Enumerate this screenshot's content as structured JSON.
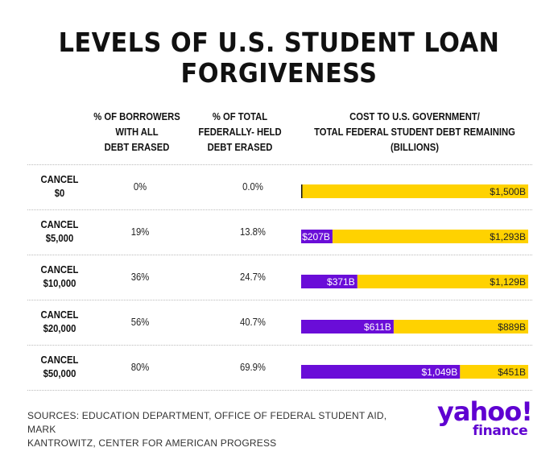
{
  "title_line1": "LEVELS OF U.S. STUDENT LOAN",
  "title_line2": "FORGIVENESS",
  "headers": {
    "borrowers": [
      "% OF BORROWERS",
      "WITH ALL",
      "DEBT ERASED"
    ],
    "debt": [
      "% OF TOTAL",
      "FEDERALLY- HELD",
      "DEBT ERASED"
    ],
    "cost": [
      "COST TO U.S. GOVERNMENT/",
      "TOTAL FEDERAL STUDENT DEBT REMAINING",
      "(BILLIONS)"
    ]
  },
  "sources_line1": "SOURCES: EDUCATION DEPARTMENT, OFFICE OF FEDERAL STUDENT AID, MARK",
  "sources_line2": "KANTROWITZ, CENTER FOR AMERICAN PROGRESS",
  "logo": {
    "yahoo": "yahoo!",
    "finance": "finance"
  },
  "colors": {
    "cost": "#6a0dd8",
    "remaining": "#ffd200"
  },
  "chart_data": {
    "type": "table",
    "rows": [
      {
        "label_line1": "CANCEL",
        "label_line2": "$0",
        "borrowers_pct": "0%",
        "debt_pct": "0.0%",
        "cost": 0,
        "remaining": 1500,
        "cost_label": "",
        "remaining_label": "$1,500B"
      },
      {
        "label_line1": "CANCEL",
        "label_line2": "$5,000",
        "borrowers_pct": "19%",
        "debt_pct": "13.8%",
        "cost": 207,
        "remaining": 1293,
        "cost_label": "$207B",
        "remaining_label": "$1,293B"
      },
      {
        "label_line1": "CANCEL",
        "label_line2": "$10,000",
        "borrowers_pct": "36%",
        "debt_pct": "24.7%",
        "cost": 371,
        "remaining": 1129,
        "cost_label": "$371B",
        "remaining_label": "$1,129B"
      },
      {
        "label_line1": "CANCEL",
        "label_line2": "$20,000",
        "borrowers_pct": "56%",
        "debt_pct": "40.7%",
        "cost": 611,
        "remaining": 889,
        "cost_label": "$611B",
        "remaining_label": "$889B"
      },
      {
        "label_line1": "CANCEL",
        "label_line2": "$50,000",
        "borrowers_pct": "80%",
        "debt_pct": "69.9%",
        "cost": 1049,
        "remaining": 451,
        "cost_label": "$1,049B",
        "remaining_label": "$451B"
      }
    ],
    "xlim": [
      0,
      1500
    ]
  }
}
